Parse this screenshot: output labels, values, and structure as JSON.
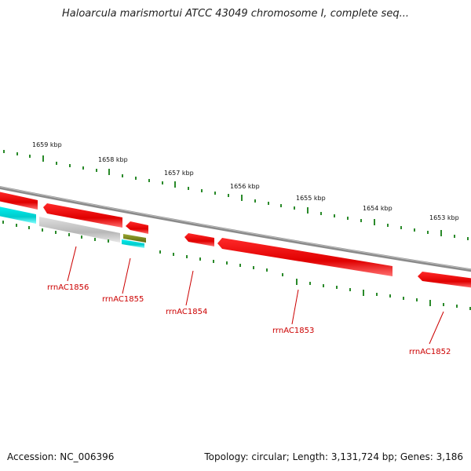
{
  "title": "Haloarcula marismortui ATCC 43049 chromosome I, complete seq...",
  "footer": {
    "accession": "Accession: NC_006396",
    "topology": "Topology: circular; Length: 3,131,724 bp; Genes: 3,186"
  },
  "colors": {
    "gene_forward": "#ee0000",
    "rrna_cyan": "#00dede",
    "rrna_gray": "#c8c8c8",
    "trna_olive": "#7a8a20",
    "backbone": "#8a8a8a",
    "tick": "#2a8a2a",
    "label": "#cc0000"
  },
  "scale_labels": [
    "1659 kbp",
    "1658 kbp",
    "1657 kbp",
    "1656 kbp",
    "1655 kbp",
    "1654 kbp",
    "1653 kbp"
  ],
  "gene_labels": [
    "rrnAC1856",
    "rrnAC1855",
    "rrnAC1854",
    "rrnAC1853",
    "rrnAC1852"
  ]
}
